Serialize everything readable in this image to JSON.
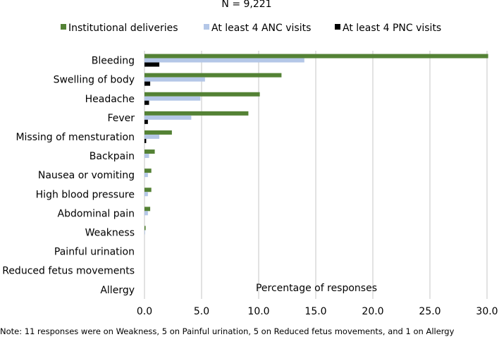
{
  "chart_data": {
    "type": "bar",
    "orientation": "horizontal",
    "title": "N = 9,221",
    "xlabel": "Percentage of responses",
    "ylabel": "",
    "xlim": [
      0,
      30
    ],
    "xticks": [
      "0.0",
      "5.0",
      "10.0",
      "15.0",
      "20.0",
      "25.0",
      "30.0"
    ],
    "grid": "vertical",
    "legend_position": "top",
    "categories": [
      "Bleeding",
      "Swelling of body",
      "Headache",
      "Fever",
      "Missing of mensturation",
      "Backpain",
      "Nausea or vomiting",
      "High blood pressure",
      "Abdominal pain",
      "Weakness",
      "Painful urination",
      "Reduced fetus movements",
      "Allergy"
    ],
    "series": [
      {
        "name": "Institutional deliveries",
        "color": "#548235",
        "values": [
          30.1,
          12.0,
          10.1,
          9.1,
          2.4,
          0.9,
          0.6,
          0.6,
          0.5,
          0.1,
          0.0,
          0.0,
          0.0
        ]
      },
      {
        "name": "At least 4 ANC visits",
        "color": "#b4c7e7",
        "values": [
          14.0,
          5.3,
          4.9,
          4.1,
          1.3,
          0.4,
          0.3,
          0.3,
          0.3,
          0.05,
          0.0,
          0.0,
          0.0
        ]
      },
      {
        "name": "At least 4 PNC visits",
        "color": "#000000",
        "values": [
          1.3,
          0.5,
          0.4,
          0.3,
          0.15,
          0.0,
          0.0,
          0.0,
          0.0,
          0.0,
          0.0,
          0.0,
          0.0
        ]
      }
    ],
    "note": "Note: 11 responses were on Weakness, 5 on Painful urination, 5 on Reduced fetus movements, and 1 on Allergy"
  }
}
